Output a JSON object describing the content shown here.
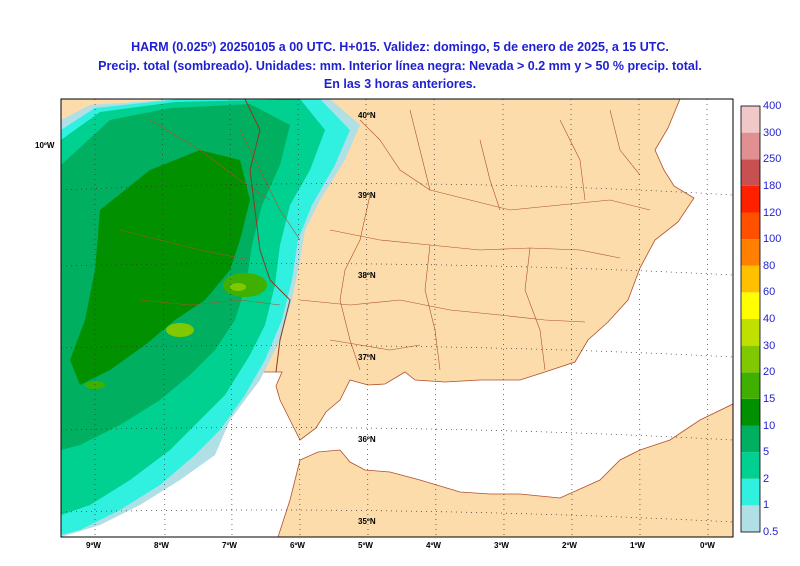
{
  "title": {
    "line1": "HARM (0.025º) 20250105 a 00 UTC. H+015. Validez: domingo, 5 de enero de 2025, a 15 UTC.",
    "line2": "Precip. total (sombreado). Unidades: mm. Interior línea negra: Nevada > 0.2 mm y > 50 % precip. total.",
    "line3": "En las 3 horas anteriores."
  },
  "map": {
    "lat_labels": [
      "40ºN",
      "39ºN",
      "38ºN",
      "37ºN",
      "36ºN",
      "35ºN"
    ],
    "lon_labels": [
      "9ºW",
      "8ºW",
      "7ºW",
      "6ºW",
      "5ºW",
      "4ºW",
      "3ºW",
      "2ºW",
      "1ºW",
      "0ºW"
    ],
    "edge_label": "10ºW",
    "colors": {
      "land": "#fbdcaa",
      "sea": "#ffffff",
      "borders": "#b0502a",
      "graticule": "#333333"
    }
  },
  "colorbar": {
    "labels": [
      "0.5",
      "1",
      "2",
      "5",
      "10",
      "15",
      "20",
      "30",
      "40",
      "60",
      "80",
      "100",
      "120",
      "180",
      "250",
      "300",
      "400"
    ],
    "colors": [
      "#b0e0e6",
      "#30f0e0",
      "#00d090",
      "#00b060",
      "#009000",
      "#40b000",
      "#80c800",
      "#c0e000",
      "#ffff00",
      "#ffc000",
      "#ff8000",
      "#ff5000",
      "#ff2000",
      "#c85050",
      "#e09090",
      "#f0c8c8"
    ]
  }
}
